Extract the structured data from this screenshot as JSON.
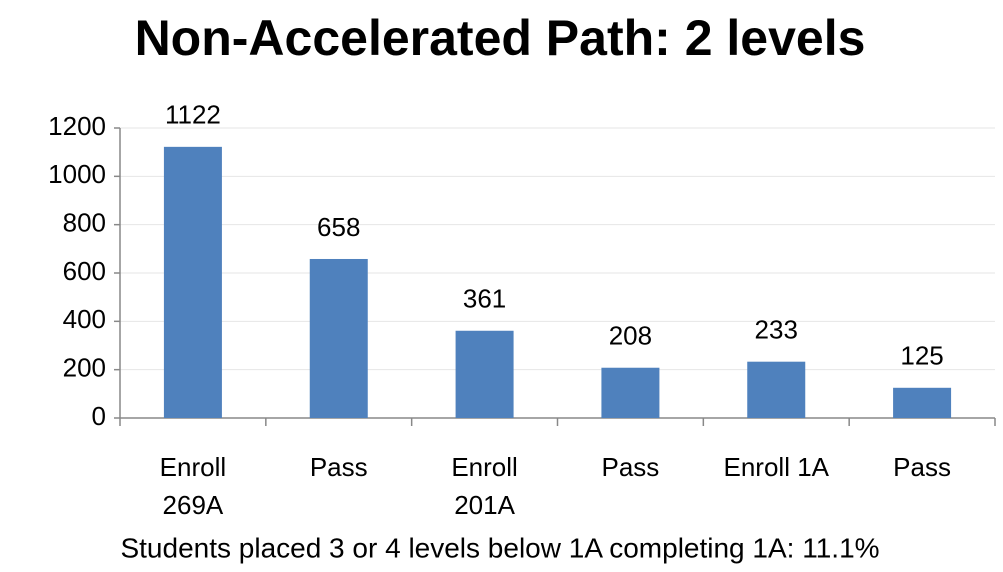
{
  "chart_data": {
    "type": "bar",
    "title": "Non-Accelerated Path: 2 levels",
    "categories": [
      "Enroll 269A",
      "Pass",
      "Enroll 201A",
      "Pass",
      "Enroll 1A",
      "Pass"
    ],
    "values": [
      1122,
      658,
      361,
      208,
      233,
      125
    ],
    "color": "#4f81bd",
    "ylim": [
      0,
      1200
    ],
    "yticks": [
      0,
      200,
      400,
      600,
      800,
      1000,
      1200
    ],
    "grid": true,
    "annotation": "Students placed 3 or 4 levels below 1A completing 1A: 11.1%"
  }
}
